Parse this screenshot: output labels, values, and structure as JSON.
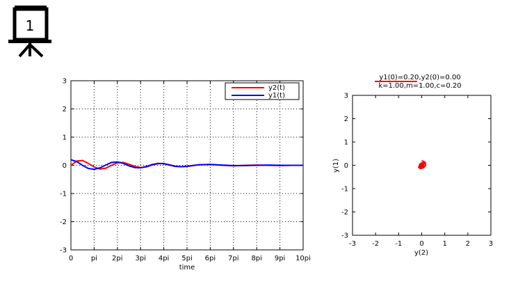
{
  "slide": {
    "number": "1",
    "icon": "projector-screen-icon"
  },
  "chart_data": [
    {
      "type": "line",
      "xlabel": "time",
      "ylabel": "",
      "x_ticks": [
        "0",
        "pi",
        "2pi",
        "3pi",
        "4pi",
        "5pi",
        "6pi",
        "7pi",
        "8pi",
        "9pi",
        "10pi"
      ],
      "y_ticks": [
        "3",
        "2",
        "1",
        "0",
        "-1",
        "-2",
        "-3"
      ],
      "xlim": [
        0,
        10
      ],
      "x_unit": "pi",
      "ylim": [
        -3,
        3
      ],
      "grid": true,
      "legend_position": "top-right",
      "series": [
        {
          "name": "y2(t)",
          "color": "#ff0000",
          "x": [
            0,
            0.25,
            0.5,
            0.75,
            1,
            1.25,
            1.5,
            1.75,
            2,
            2.25,
            2.5,
            2.75,
            3,
            3.25,
            3.5,
            3.75,
            4,
            4.25,
            4.5,
            4.75,
            5,
            5.5,
            6,
            6.5,
            7,
            7.5,
            8,
            8.5,
            9,
            9.5,
            10
          ],
          "values": [
            0.0,
            0.15,
            0.17,
            0.07,
            -0.06,
            -0.13,
            -0.1,
            0.0,
            0.09,
            0.1,
            0.04,
            -0.04,
            -0.08,
            -0.06,
            0.01,
            0.06,
            0.06,
            0.02,
            -0.03,
            -0.05,
            -0.04,
            0.02,
            0.03,
            0.0,
            -0.02,
            0.0,
            0.01,
            0.0,
            -0.01,
            0.0,
            0.0
          ]
        },
        {
          "name": "y1(t)",
          "color": "#0000ff",
          "x": [
            0,
            0.25,
            0.5,
            0.75,
            1,
            1.25,
            1.5,
            1.75,
            2,
            2.25,
            2.5,
            2.75,
            3,
            3.25,
            3.5,
            3.75,
            4,
            4.25,
            4.5,
            4.75,
            5,
            5.5,
            6,
            6.5,
            7,
            7.5,
            8,
            8.5,
            9,
            9.5,
            10
          ],
          "values": [
            0.2,
            0.13,
            0.0,
            -0.11,
            -0.14,
            -0.09,
            0.01,
            0.1,
            0.12,
            0.07,
            -0.02,
            -0.08,
            -0.09,
            -0.04,
            0.03,
            0.07,
            0.06,
            0.01,
            -0.04,
            -0.05,
            -0.03,
            0.02,
            0.03,
            0.01,
            -0.01,
            -0.01,
            0.0,
            0.01,
            0.0,
            0.0,
            0.0
          ]
        }
      ]
    },
    {
      "type": "scatter",
      "title_lines": [
        "y1(0)=0.20,y2(0)=0.00",
        "k=1.00,m=1.00,c=0.20"
      ],
      "xlabel": "y(2)",
      "ylabel": "y(1)",
      "x_ticks": [
        "-3",
        "-2",
        "-1",
        "0",
        "1",
        "2",
        "3"
      ],
      "y_ticks": [
        "3",
        "2",
        "1",
        "0",
        "-1",
        "-2",
        "-3"
      ],
      "xlim": [
        -3,
        3
      ],
      "ylim": [
        -3,
        3
      ],
      "grid": false,
      "series": [
        {
          "name": "",
          "color": "#ff0000",
          "x": [
            0.0,
            0.15,
            0.17,
            0.07,
            -0.06,
            -0.13,
            -0.1,
            0.0,
            0.09,
            0.1,
            0.04,
            -0.04,
            -0.08,
            -0.06,
            0.01,
            0.06,
            0.06,
            0.02,
            -0.03,
            -0.05,
            -0.04,
            0.0
          ],
          "y": [
            0.2,
            0.13,
            0.0,
            -0.11,
            -0.14,
            -0.09,
            0.01,
            0.1,
            0.12,
            0.07,
            -0.02,
            -0.08,
            -0.09,
            -0.04,
            0.03,
            0.07,
            0.06,
            0.01,
            -0.04,
            -0.05,
            -0.03,
            0.0
          ]
        }
      ]
    }
  ]
}
